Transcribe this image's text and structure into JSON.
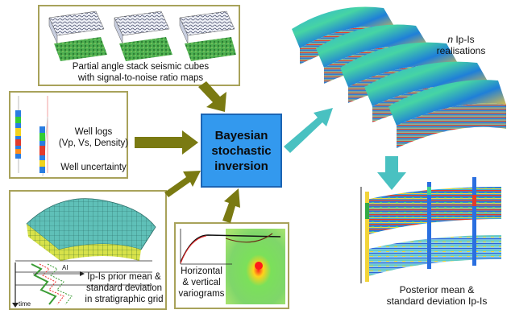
{
  "center": {
    "line1": "Bayesian",
    "line2": "stochastic",
    "line3": "inversion"
  },
  "seismic": {
    "line1": "Partial angle stack seismic cubes",
    "line2": "with signal-to-noise ratio maps"
  },
  "wells": {
    "line1": "Well logs",
    "line2": "(Vp, Vs, Density)",
    "line3": "Well uncertainty"
  },
  "prior": {
    "line1": "Ip-Is prior mean &",
    "line2": "standard deviation",
    "line3": "in stratigraphic grid",
    "axis_ai": "AI",
    "axis_time": "time"
  },
  "vario": {
    "line1": "Horizontal",
    "line2": "& vertical",
    "line3": "variograms"
  },
  "realisations": {
    "n": "n",
    "line1": " Ip-Is",
    "line2": "realisations"
  },
  "posterior": {
    "line1": "Posterior mean &",
    "line2": "standard deviation Ip-Is"
  },
  "colors": {
    "panel_border": "#a8a25a",
    "arrow_olive": "#7a7a12",
    "arrow_teal": "#49c1c1",
    "center_fill": "#3399ee"
  }
}
